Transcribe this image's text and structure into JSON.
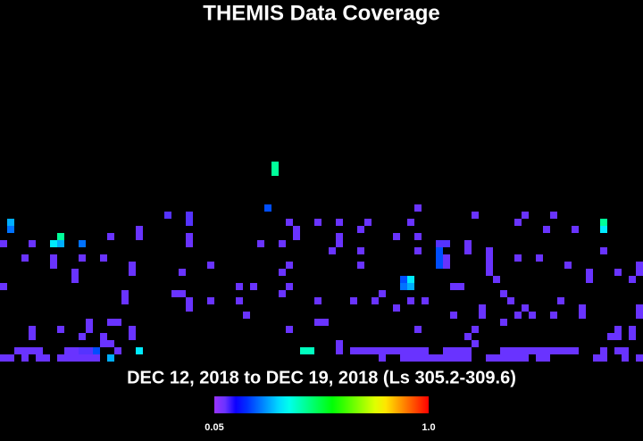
{
  "chart_data": {
    "type": "heatmap",
    "title": "THEMIS Data Coverage",
    "subtitle": "DEC 12, 2018 to DEC 19, 2018 (Ls 305.2-309.6)",
    "colorbar": {
      "range": [
        0.05,
        1
      ],
      "ticks": [
        0.05,
        {
          "value": 1,
          "label": "1.0"
        }
      ]
    },
    "cells": [
      {
        "x": 38,
        "y": 22,
        "value": 0.45
      },
      {
        "x": 38,
        "y": 23,
        "value": 0.45
      },
      {
        "x": 37,
        "y": 28,
        "value": 0.22
      },
      {
        "x": 23,
        "y": 29,
        "value": 0.12
      },
      {
        "x": 26,
        "y": 29,
        "value": 0.12
      },
      {
        "x": 26,
        "y": 30,
        "value": 0.12
      },
      {
        "x": 1,
        "y": 30,
        "value": 0.3
      },
      {
        "x": 1,
        "y": 31,
        "value": 0.25
      },
      {
        "x": 8,
        "y": 32,
        "value": 0.45
      },
      {
        "x": 7,
        "y": 33,
        "value": 0.35
      },
      {
        "x": 8,
        "y": 33,
        "value": 0.3
      },
      {
        "x": 11,
        "y": 33,
        "value": 0.25
      },
      {
        "x": 15,
        "y": 32,
        "value": 0.1
      },
      {
        "x": 19,
        "y": 31,
        "value": 0.1
      },
      {
        "x": 19,
        "y": 32,
        "value": 0.1
      },
      {
        "x": 84,
        "y": 30,
        "value": 0.45
      },
      {
        "x": 84,
        "y": 31,
        "value": 0.35
      },
      {
        "x": 58,
        "y": 28,
        "value": 0.1
      },
      {
        "x": 66,
        "y": 29,
        "value": 0.1
      },
      {
        "x": 40,
        "y": 30,
        "value": 0.1
      },
      {
        "x": 44,
        "y": 30,
        "value": 0.1
      },
      {
        "x": 41,
        "y": 31,
        "value": 0.1
      },
      {
        "x": 47,
        "y": 30,
        "value": 0.1
      },
      {
        "x": 51,
        "y": 30,
        "value": 0.1
      },
      {
        "x": 57,
        "y": 30,
        "value": 0.1
      },
      {
        "x": 50,
        "y": 31,
        "value": 0.1
      },
      {
        "x": 58,
        "y": 32,
        "value": 0.1
      },
      {
        "x": 73,
        "y": 29,
        "value": 0.1
      },
      {
        "x": 77,
        "y": 29,
        "value": 0.1
      },
      {
        "x": 72,
        "y": 30,
        "value": 0.1
      },
      {
        "x": 76,
        "y": 31,
        "value": 0.1
      },
      {
        "x": 80,
        "y": 31,
        "value": 0.1
      },
      {
        "x": 0,
        "y": 33,
        "value": 0.1
      },
      {
        "x": 4,
        "y": 33,
        "value": 0.1
      },
      {
        "x": 3,
        "y": 35,
        "value": 0.1
      },
      {
        "x": 7,
        "y": 35,
        "value": 0.1
      },
      {
        "x": 7,
        "y": 36,
        "value": 0.1
      },
      {
        "x": 11,
        "y": 35,
        "value": 0.1
      },
      {
        "x": 14,
        "y": 35,
        "value": 0.1
      },
      {
        "x": 26,
        "y": 32,
        "value": 0.1
      },
      {
        "x": 26,
        "y": 33,
        "value": 0.1
      },
      {
        "x": 36,
        "y": 33,
        "value": 0.1
      },
      {
        "x": 39,
        "y": 33,
        "value": 0.1
      },
      {
        "x": 41,
        "y": 32,
        "value": 0.1
      },
      {
        "x": 47,
        "y": 32,
        "value": 0.1
      },
      {
        "x": 47,
        "y": 33,
        "value": 0.1
      },
      {
        "x": 46,
        "y": 34,
        "value": 0.1
      },
      {
        "x": 50,
        "y": 34,
        "value": 0.1
      },
      {
        "x": 55,
        "y": 32,
        "value": 0.1
      },
      {
        "x": 58,
        "y": 34,
        "value": 0.1
      },
      {
        "x": 61,
        "y": 33,
        "value": 0.12
      },
      {
        "x": 62,
        "y": 33,
        "value": 0.12
      },
      {
        "x": 65,
        "y": 33,
        "value": 0.1
      },
      {
        "x": 65,
        "y": 34,
        "value": 0.1
      },
      {
        "x": 68,
        "y": 34,
        "value": 0.1
      },
      {
        "x": 68,
        "y": 35,
        "value": 0.1
      },
      {
        "x": 61,
        "y": 34,
        "value": 0.22
      },
      {
        "x": 61,
        "y": 35,
        "value": 0.22
      },
      {
        "x": 61,
        "y": 36,
        "value": 0.22
      },
      {
        "x": 62,
        "y": 35,
        "value": 0.1
      },
      {
        "x": 62,
        "y": 36,
        "value": 0.1
      },
      {
        "x": 84,
        "y": 34,
        "value": 0.1
      },
      {
        "x": 10,
        "y": 37,
        "value": 0.1
      },
      {
        "x": 10,
        "y": 38,
        "value": 0.1
      },
      {
        "x": 18,
        "y": 36,
        "value": 0.1
      },
      {
        "x": 18,
        "y": 37,
        "value": 0.1
      },
      {
        "x": 25,
        "y": 37,
        "value": 0.1
      },
      {
        "x": 29,
        "y": 36,
        "value": 0.1
      },
      {
        "x": 39,
        "y": 37,
        "value": 0.1
      },
      {
        "x": 40,
        "y": 36,
        "value": 0.1
      },
      {
        "x": 50,
        "y": 36,
        "value": 0.1
      },
      {
        "x": 64,
        "y": 39,
        "value": 0.1
      },
      {
        "x": 68,
        "y": 36,
        "value": 0.1
      },
      {
        "x": 68,
        "y": 37,
        "value": 0.1
      },
      {
        "x": 69,
        "y": 38,
        "value": 0.1
      },
      {
        "x": 72,
        "y": 35,
        "value": 0.1
      },
      {
        "x": 75,
        "y": 35,
        "value": 0.1
      },
      {
        "x": 79,
        "y": 36,
        "value": 0.1
      },
      {
        "x": 82,
        "y": 37,
        "value": 0.1
      },
      {
        "x": 82,
        "y": 38,
        "value": 0.1
      },
      {
        "x": 89,
        "y": 36,
        "value": 0.1
      },
      {
        "x": 89,
        "y": 37,
        "value": 0.1
      },
      {
        "x": 56,
        "y": 38,
        "value": 0.22
      },
      {
        "x": 57,
        "y": 38,
        "value": 0.35
      },
      {
        "x": 56,
        "y": 39,
        "value": 0.25
      },
      {
        "x": 57,
        "y": 39,
        "value": 0.3
      },
      {
        "x": 24,
        "y": 40,
        "value": 0.1
      },
      {
        "x": 25,
        "y": 40,
        "value": 0.1
      },
      {
        "x": 29,
        "y": 41,
        "value": 0.1
      },
      {
        "x": 33,
        "y": 41,
        "value": 0.1
      },
      {
        "x": 33,
        "y": 39,
        "value": 0.1
      },
      {
        "x": 35,
        "y": 39,
        "value": 0.1
      },
      {
        "x": 39,
        "y": 40,
        "value": 0.1
      },
      {
        "x": 40,
        "y": 39,
        "value": 0.1
      },
      {
        "x": 44,
        "y": 41,
        "value": 0.1
      },
      {
        "x": 49,
        "y": 41,
        "value": 0.1
      },
      {
        "x": 52,
        "y": 41,
        "value": 0.1
      },
      {
        "x": 53,
        "y": 40,
        "value": 0.1
      },
      {
        "x": 57,
        "y": 41,
        "value": 0.1
      },
      {
        "x": 59,
        "y": 41,
        "value": 0.1
      },
      {
        "x": 63,
        "y": 39,
        "value": 0.1
      },
      {
        "x": 67,
        "y": 42,
        "value": 0.1
      },
      {
        "x": 67,
        "y": 43,
        "value": 0.1
      },
      {
        "x": 70,
        "y": 40,
        "value": 0.1
      },
      {
        "x": 71,
        "y": 41,
        "value": 0.1
      },
      {
        "x": 78,
        "y": 41,
        "value": 0.1
      },
      {
        "x": 81,
        "y": 42,
        "value": 0.1
      },
      {
        "x": 86,
        "y": 37,
        "value": 0.1
      },
      {
        "x": 88,
        "y": 38,
        "value": 0.1
      },
      {
        "x": 0,
        "y": 39,
        "value": 0.1
      },
      {
        "x": 17,
        "y": 40,
        "value": 0.1
      },
      {
        "x": 17,
        "y": 41,
        "value": 0.1
      },
      {
        "x": 26,
        "y": 41,
        "value": 0.1
      },
      {
        "x": 26,
        "y": 42,
        "value": 0.1
      },
      {
        "x": 34,
        "y": 43,
        "value": 0.1
      },
      {
        "x": 44,
        "y": 44,
        "value": 0.1
      },
      {
        "x": 45,
        "y": 44,
        "value": 0.1
      },
      {
        "x": 55,
        "y": 42,
        "value": 0.1
      },
      {
        "x": 63,
        "y": 43,
        "value": 0.1
      },
      {
        "x": 70,
        "y": 44,
        "value": 0.1
      },
      {
        "x": 73,
        "y": 42,
        "value": 0.1
      },
      {
        "x": 74,
        "y": 43,
        "value": 0.1
      },
      {
        "x": 77,
        "y": 43,
        "value": 0.1
      },
      {
        "x": 81,
        "y": 43,
        "value": 0.1
      },
      {
        "x": 89,
        "y": 42,
        "value": 0.1
      },
      {
        "x": 89,
        "y": 43,
        "value": 0.1
      },
      {
        "x": 72,
        "y": 43,
        "value": 0.1
      },
      {
        "x": 4,
        "y": 45,
        "value": 0.1
      },
      {
        "x": 4,
        "y": 46,
        "value": 0.1
      },
      {
        "x": 12,
        "y": 44,
        "value": 0.1
      },
      {
        "x": 12,
        "y": 45,
        "value": 0.1
      },
      {
        "x": 15,
        "y": 44,
        "value": 0.1
      },
      {
        "x": 16,
        "y": 44,
        "value": 0.1
      },
      {
        "x": 8,
        "y": 45,
        "value": 0.1
      },
      {
        "x": 11,
        "y": 46,
        "value": 0.1
      },
      {
        "x": 18,
        "y": 45,
        "value": 0.1
      },
      {
        "x": 18,
        "y": 46,
        "value": 0.1
      },
      {
        "x": 15,
        "y": 47,
        "value": 0.1
      },
      {
        "x": 14,
        "y": 46,
        "value": 0.1
      },
      {
        "x": 14,
        "y": 47,
        "value": 0.1
      },
      {
        "x": 40,
        "y": 45,
        "value": 0.1
      },
      {
        "x": 47,
        "y": 47,
        "value": 0.1
      },
      {
        "x": 58,
        "y": 45,
        "value": 0.1
      },
      {
        "x": 66,
        "y": 45,
        "value": 0.1
      },
      {
        "x": 65,
        "y": 46,
        "value": 0.1
      },
      {
        "x": 66,
        "y": 47,
        "value": 0.1
      },
      {
        "x": 86,
        "y": 45,
        "value": 0.1
      },
      {
        "x": 86,
        "y": 46,
        "value": 0.1
      },
      {
        "x": 85,
        "y": 46,
        "value": 0.1
      },
      {
        "x": 88,
        "y": 45,
        "value": 0.1
      },
      {
        "x": 88,
        "y": 46,
        "value": 0.1
      },
      {
        "x": 2,
        "y": 48,
        "value": 0.1
      },
      {
        "x": 3,
        "y": 48,
        "value": 0.1
      },
      {
        "x": 4,
        "y": 48,
        "value": 0.1
      },
      {
        "x": 5,
        "y": 48,
        "value": 0.1
      },
      {
        "x": 9,
        "y": 48,
        "value": 0.1
      },
      {
        "x": 10,
        "y": 48,
        "value": 0.1
      },
      {
        "x": 11,
        "y": 48,
        "value": 0.12
      },
      {
        "x": 12,
        "y": 48,
        "value": 0.12
      },
      {
        "x": 13,
        "y": 48,
        "value": 0.22
      },
      {
        "x": 16,
        "y": 48,
        "value": 0.1
      },
      {
        "x": 19,
        "y": 48,
        "value": 0.35
      },
      {
        "x": 42,
        "y": 48,
        "value": 0.42
      },
      {
        "x": 43,
        "y": 48,
        "value": 0.42
      },
      {
        "x": 47,
        "y": 48,
        "value": 0.1
      },
      {
        "x": 49,
        "y": 48,
        "value": 0.1
      },
      {
        "x": 50,
        "y": 48,
        "value": 0.1
      },
      {
        "x": 51,
        "y": 48,
        "value": 0.1
      },
      {
        "x": 52,
        "y": 48,
        "value": 0.1
      },
      {
        "x": 53,
        "y": 48,
        "value": 0.1
      },
      {
        "x": 54,
        "y": 48,
        "value": 0.1
      },
      {
        "x": 55,
        "y": 48,
        "value": 0.1
      },
      {
        "x": 56,
        "y": 48,
        "value": 0.1
      },
      {
        "x": 57,
        "y": 48,
        "value": 0.1
      },
      {
        "x": 58,
        "y": 48,
        "value": 0.1
      },
      {
        "x": 59,
        "y": 48,
        "value": 0.1
      },
      {
        "x": 62,
        "y": 48,
        "value": 0.1
      },
      {
        "x": 63,
        "y": 48,
        "value": 0.1
      },
      {
        "x": 64,
        "y": 48,
        "value": 0.1
      },
      {
        "x": 65,
        "y": 48,
        "value": 0.1
      },
      {
        "x": 70,
        "y": 48,
        "value": 0.1
      },
      {
        "x": 71,
        "y": 48,
        "value": 0.1
      },
      {
        "x": 72,
        "y": 48,
        "value": 0.1
      },
      {
        "x": 73,
        "y": 48,
        "value": 0.1
      },
      {
        "x": 74,
        "y": 48,
        "value": 0.1
      },
      {
        "x": 75,
        "y": 48,
        "value": 0.1
      },
      {
        "x": 76,
        "y": 48,
        "value": 0.1
      },
      {
        "x": 77,
        "y": 48,
        "value": 0.1
      },
      {
        "x": 78,
        "y": 48,
        "value": 0.1
      },
      {
        "x": 79,
        "y": 48,
        "value": 0.1
      },
      {
        "x": 80,
        "y": 48,
        "value": 0.1
      },
      {
        "x": 84,
        "y": 48,
        "value": 0.1
      },
      {
        "x": 86,
        "y": 48,
        "value": 0.1
      },
      {
        "x": 87,
        "y": 48,
        "value": 0.1
      },
      {
        "x": 0,
        "y": 49,
        "value": 0.1
      },
      {
        "x": 1,
        "y": 49,
        "value": 0.1
      },
      {
        "x": 3,
        "y": 49,
        "value": 0.1
      },
      {
        "x": 5,
        "y": 49,
        "value": 0.1
      },
      {
        "x": 6,
        "y": 49,
        "value": 0.1
      },
      {
        "x": 8,
        "y": 49,
        "value": 0.1
      },
      {
        "x": 9,
        "y": 49,
        "value": 0.1
      },
      {
        "x": 10,
        "y": 49,
        "value": 0.1
      },
      {
        "x": 11,
        "y": 49,
        "value": 0.1
      },
      {
        "x": 12,
        "y": 49,
        "value": 0.1
      },
      {
        "x": 13,
        "y": 49,
        "value": 0.1
      },
      {
        "x": 15,
        "y": 49,
        "value": 0.3
      },
      {
        "x": 53,
        "y": 49,
        "value": 0.1
      },
      {
        "x": 56,
        "y": 49,
        "value": 0.1
      },
      {
        "x": 57,
        "y": 49,
        "value": 0.1
      },
      {
        "x": 58,
        "y": 49,
        "value": 0.1
      },
      {
        "x": 59,
        "y": 49,
        "value": 0.1
      },
      {
        "x": 60,
        "y": 49,
        "value": 0.1
      },
      {
        "x": 61,
        "y": 49,
        "value": 0.1
      },
      {
        "x": 62,
        "y": 49,
        "value": 0.1
      },
      {
        "x": 63,
        "y": 49,
        "value": 0.1
      },
      {
        "x": 64,
        "y": 49,
        "value": 0.1
      },
      {
        "x": 65,
        "y": 49,
        "value": 0.1
      },
      {
        "x": 68,
        "y": 49,
        "value": 0.1
      },
      {
        "x": 69,
        "y": 49,
        "value": 0.1
      },
      {
        "x": 70,
        "y": 49,
        "value": 0.1
      },
      {
        "x": 71,
        "y": 49,
        "value": 0.1
      },
      {
        "x": 72,
        "y": 49,
        "value": 0.1
      },
      {
        "x": 73,
        "y": 49,
        "value": 0.1
      },
      {
        "x": 75,
        "y": 49,
        "value": 0.1
      },
      {
        "x": 76,
        "y": 49,
        "value": 0.1
      },
      {
        "x": 83,
        "y": 49,
        "value": 0.1
      },
      {
        "x": 84,
        "y": 49,
        "value": 0.1
      },
      {
        "x": 87,
        "y": 49,
        "value": 0.1
      },
      {
        "x": 89,
        "y": 49,
        "value": 0.1
      }
    ]
  }
}
